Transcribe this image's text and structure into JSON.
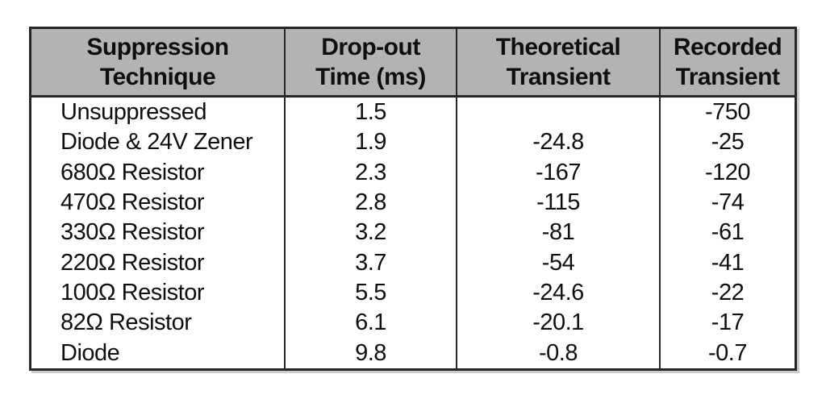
{
  "table": {
    "columns": [
      {
        "line1": "Suppression",
        "line2": "Technique"
      },
      {
        "line1": "Drop-out",
        "line2": "Time (ms)"
      },
      {
        "line1": "Theoretical",
        "line2": "Transient"
      },
      {
        "line1": "Recorded",
        "line2": "Transient"
      }
    ],
    "rows": [
      {
        "technique": "Unsuppressed",
        "dropout": "1.5",
        "theoretical": "",
        "recorded": "-750"
      },
      {
        "technique": "Diode & 24V Zener",
        "dropout": "1.9",
        "theoretical": "-24.8",
        "recorded": "-25"
      },
      {
        "technique": "680Ω Resistor",
        "dropout": "2.3",
        "theoretical": "-167",
        "recorded": "-120"
      },
      {
        "technique": "470Ω Resistor",
        "dropout": "2.8",
        "theoretical": "-115",
        "recorded": "-74"
      },
      {
        "technique": "330Ω Resistor",
        "dropout": "3.2",
        "theoretical": "-81",
        "recorded": "-61"
      },
      {
        "technique": "220Ω Resistor",
        "dropout": "3.7",
        "theoretical": "-54",
        "recorded": "-41"
      },
      {
        "technique": "100Ω Resistor",
        "dropout": "5.5",
        "theoretical": "-24.6",
        "recorded": "-22"
      },
      {
        "technique": "82Ω Resistor",
        "dropout": "6.1",
        "theoretical": "-20.1",
        "recorded": "-17"
      },
      {
        "technique": "Diode",
        "dropout": "9.8",
        "theoretical": "-0.8",
        "recorded": "-0.7"
      }
    ]
  },
  "colors": {
    "header_bg": "#b3b3b3",
    "border": "#262626",
    "text": "#0f0f0f",
    "background": "#ffffff"
  }
}
